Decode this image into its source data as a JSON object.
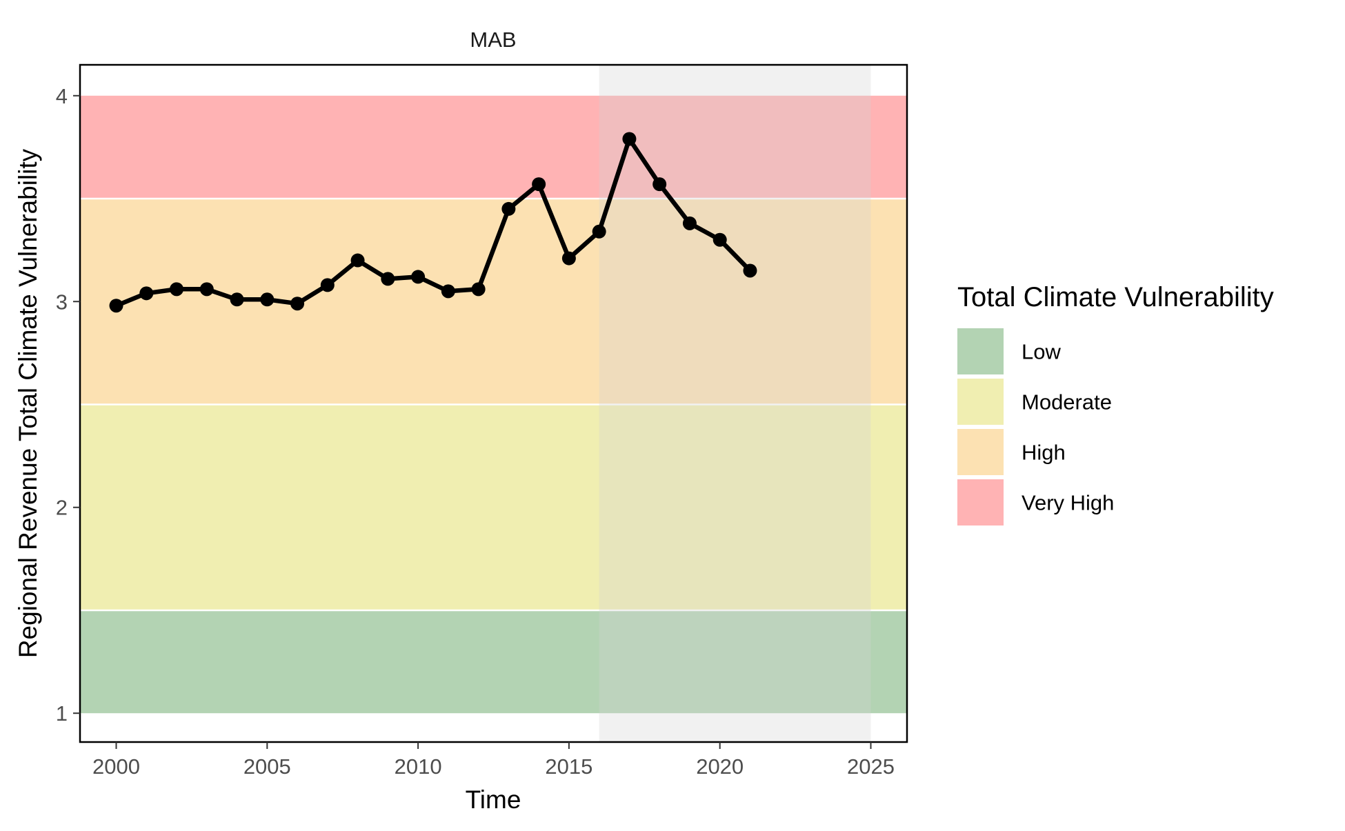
{
  "chart_data": {
    "type": "line",
    "title": "MAB",
    "xlabel": "Time",
    "ylabel": "Regional Revenue Total Climate Vulnerability",
    "xlim": [
      1998.8,
      2026.2
    ],
    "ylim": [
      0.86,
      4.15
    ],
    "x_ticks": [
      2000,
      2005,
      2010,
      2015,
      2020,
      2025
    ],
    "y_ticks": [
      1,
      2,
      3,
      4
    ],
    "grid": false,
    "legend_position": "right",
    "legend_title": "Total Climate Vulnerability",
    "bands": [
      {
        "label": "Low",
        "from": 1.0,
        "to": 1.5,
        "color": "#b3d3b3"
      },
      {
        "label": "Moderate",
        "from": 1.5,
        "to": 2.5,
        "color": "#f0eeb1"
      },
      {
        "label": "High",
        "from": 2.5,
        "to": 3.5,
        "color": "#fce1b2"
      },
      {
        "label": "Very High",
        "from": 3.5,
        "to": 4.0,
        "color": "#ffb3b4"
      }
    ],
    "highlight_range": [
      2016,
      2025
    ],
    "highlight_color": "#d3d3d3",
    "series": [
      {
        "color": "#000000",
        "x": [
          2000,
          2001,
          2002,
          2003,
          2004,
          2005,
          2006,
          2007,
          2008,
          2009,
          2010,
          2011,
          2012,
          2013,
          2014,
          2015,
          2016,
          2017,
          2018,
          2019,
          2020,
          2021
        ],
        "y": [
          2.98,
          3.04,
          3.06,
          3.06,
          3.01,
          3.01,
          2.99,
          3.08,
          3.2,
          3.11,
          3.12,
          3.05,
          3.06,
          3.45,
          3.57,
          3.21,
          3.34,
          3.79,
          3.57,
          3.38,
          3.3,
          3.15
        ]
      }
    ]
  }
}
